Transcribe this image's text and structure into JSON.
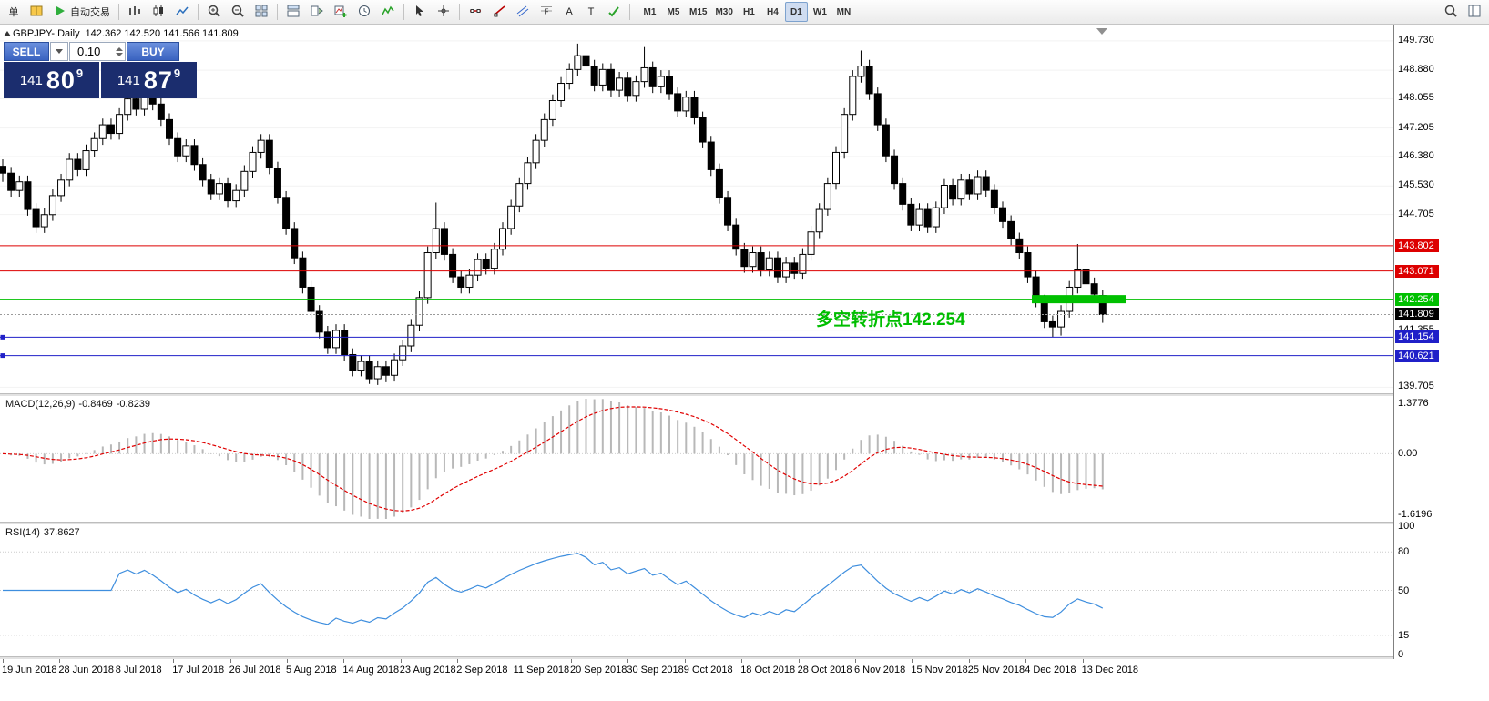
{
  "toolbar": {
    "groups": [
      {
        "items": [
          {
            "name": "new-order-button",
            "label": "单"
          },
          {
            "name": "charts-profile-button",
            "icon": "book"
          },
          {
            "name": "autotrading-button",
            "icon": "play",
            "label": "自动交易"
          }
        ]
      },
      {
        "sep": true
      },
      {
        "items": [
          {
            "name": "bar-chart-button",
            "icon": "bars"
          },
          {
            "name": "candlestick-chart-button",
            "icon": "candles"
          },
          {
            "name": "line-chart-button",
            "icon": "linechart"
          }
        ]
      },
      {
        "sep": true
      },
      {
        "items": [
          {
            "name": "zoom-in-button",
            "icon": "zoom-in"
          },
          {
            "name": "zoom-out-button",
            "icon": "zoom-out"
          },
          {
            "name": "tile-windows-button",
            "icon": "tile"
          }
        ]
      },
      {
        "sep": true
      },
      {
        "items": [
          {
            "name": "arrange-windows-button",
            "icon": "arrange"
          },
          {
            "name": "auto-scroll-button",
            "icon": "shift"
          },
          {
            "name": "new-chart-button",
            "icon": "new-chart"
          },
          {
            "name": "periods-button",
            "icon": "clock"
          },
          {
            "name": "indicators-button",
            "icon": "indicator"
          }
        ]
      },
      {
        "sep": true
      },
      {
        "items": [
          {
            "name": "cursor-button",
            "icon": "cursor"
          },
          {
            "name": "crosshair-button",
            "icon": "crosshair"
          }
        ]
      },
      {
        "sep": true
      },
      {
        "items": [
          {
            "name": "horizontal-line-button",
            "icon": "hline"
          },
          {
            "name": "trendline-button",
            "icon": "trendline"
          },
          {
            "name": "channel-button",
            "icon": "channel"
          },
          {
            "name": "fibonacci-button",
            "icon": "fibo"
          },
          {
            "name": "text-tool-button",
            "label": "A"
          },
          {
            "name": "label-tool-button",
            "label": "T"
          },
          {
            "name": "arrows-tool-button",
            "icon": "arrows"
          }
        ]
      },
      {
        "sep": true
      },
      {
        "timeframes": true
      }
    ],
    "timeframes": {
      "options": [
        "M1",
        "M5",
        "M15",
        "M30",
        "H1",
        "H4",
        "D1",
        "W1",
        "MN"
      ],
      "active": "D1"
    },
    "right_items": [
      {
        "name": "symbol-search-button",
        "icon": "search"
      },
      {
        "name": "panels-button",
        "icon": "panel"
      }
    ]
  },
  "chart_header": {
    "symbol_period": "GBPJPY-,Daily",
    "ohlc": "142.362 142.520 141.566 141.809"
  },
  "trade_panel": {
    "sell_label": "SELL",
    "buy_label": "BUY",
    "lot": "0.10",
    "bid": {
      "main": "141",
      "big": "80",
      "sup": "9"
    },
    "ask": {
      "main": "141",
      "big": "87",
      "sup": "9"
    }
  },
  "annotation": {
    "text": "多空转折点142.254",
    "color": "#00BE00"
  },
  "chart_data": {
    "type": "candlestick",
    "symbol": "GBPJPY-",
    "period": "Daily",
    "ylim": [
      139.53,
      150.2
    ],
    "price_axis_ticks": [
      "149.730",
      "148.880",
      "148.055",
      "147.205",
      "146.380",
      "145.530",
      "144.705",
      "141.355",
      "139.705"
    ],
    "levels": [
      {
        "price": 143.802,
        "label": "143.802",
        "color": "#DD0000"
      },
      {
        "price": 143.071,
        "label": "143.071",
        "color": "#DD0000"
      },
      {
        "price": 142.254,
        "label": "142.254",
        "color": "#00C000",
        "segment": [
          1133,
          1236
        ]
      },
      {
        "price": 141.809,
        "label": "141.809",
        "color": "#000000",
        "style": "current"
      },
      {
        "price": 141.154,
        "label": "141.154",
        "color": "#2020C8",
        "handles": true
      },
      {
        "price": 140.621,
        "label": "140.621",
        "color": "#2020C8",
        "handles": true
      }
    ],
    "candles": [
      [
        146.1,
        146.3,
        145.65,
        145.9
      ],
      [
        145.9,
        146.08,
        145.22,
        145.4
      ],
      [
        145.4,
        145.83,
        145.22,
        145.65
      ],
      [
        145.65,
        145.83,
        144.67,
        144.85
      ],
      [
        144.85,
        145.03,
        144.17,
        144.35
      ],
      [
        144.35,
        144.88,
        144.17,
        144.7
      ],
      [
        144.7,
        145.43,
        144.52,
        145.25
      ],
      [
        145.25,
        145.88,
        145.07,
        145.7
      ],
      [
        145.7,
        146.48,
        145.52,
        146.3
      ],
      [
        146.3,
        146.48,
        145.82,
        146.0
      ],
      [
        146.0,
        146.73,
        145.82,
        146.55
      ],
      [
        146.55,
        147.08,
        146.37,
        146.9
      ],
      [
        146.9,
        147.48,
        146.72,
        147.3
      ],
      [
        147.3,
        147.48,
        146.87,
        147.05
      ],
      [
        147.05,
        147.78,
        146.87,
        147.6
      ],
      [
        147.6,
        148.23,
        147.42,
        148.05
      ],
      [
        148.05,
        148.23,
        147.57,
        147.75
      ],
      [
        147.75,
        148.55,
        147.57,
        148.25
      ],
      [
        148.25,
        148.43,
        147.72,
        147.9
      ],
      [
        147.9,
        148.08,
        147.27,
        147.45
      ],
      [
        147.45,
        147.63,
        146.72,
        146.9
      ],
      [
        146.9,
        147.08,
        146.22,
        146.4
      ],
      [
        146.4,
        146.88,
        146.22,
        146.7
      ],
      [
        146.7,
        146.88,
        145.97,
        146.15
      ],
      [
        146.15,
        146.33,
        145.52,
        145.7
      ],
      [
        145.7,
        145.88,
        145.12,
        145.3
      ],
      [
        145.3,
        145.78,
        145.12,
        145.6
      ],
      [
        145.6,
        145.78,
        144.92,
        145.1
      ],
      [
        145.1,
        145.58,
        144.92,
        145.4
      ],
      [
        145.4,
        146.13,
        145.22,
        145.95
      ],
      [
        145.95,
        146.68,
        145.77,
        146.5
      ],
      [
        146.5,
        147.03,
        146.32,
        146.85
      ],
      [
        146.85,
        147.03,
        145.87,
        146.05
      ],
      [
        146.05,
        146.23,
        145.02,
        145.2
      ],
      [
        145.2,
        145.38,
        144.12,
        144.3
      ],
      [
        144.3,
        144.48,
        143.27,
        143.45
      ],
      [
        143.45,
        143.63,
        142.42,
        142.6
      ],
      [
        142.6,
        142.78,
        141.72,
        141.9
      ],
      [
        141.9,
        142.08,
        141.12,
        141.3
      ],
      [
        141.3,
        141.48,
        140.67,
        140.85
      ],
      [
        140.85,
        141.53,
        140.67,
        141.35
      ],
      [
        141.35,
        141.53,
        140.47,
        140.65
      ],
      [
        140.65,
        140.83,
        140.02,
        140.2
      ],
      [
        140.2,
        140.63,
        140.02,
        140.45
      ],
      [
        140.45,
        140.63,
        139.8,
        139.95
      ],
      [
        139.95,
        140.48,
        139.77,
        140.3
      ],
      [
        140.3,
        140.48,
        139.85,
        140.05
      ],
      [
        140.05,
        140.68,
        139.87,
        140.5
      ],
      [
        140.5,
        141.08,
        140.32,
        140.9
      ],
      [
        140.9,
        141.68,
        140.72,
        141.5
      ],
      [
        141.5,
        142.48,
        141.32,
        142.3
      ],
      [
        142.3,
        143.78,
        142.12,
        143.6
      ],
      [
        143.6,
        145.05,
        143.42,
        144.3
      ],
      [
        144.3,
        144.48,
        143.37,
        143.55
      ],
      [
        143.55,
        143.73,
        142.72,
        142.9
      ],
      [
        142.9,
        143.08,
        142.42,
        142.6
      ],
      [
        142.6,
        143.13,
        142.42,
        142.95
      ],
      [
        142.95,
        143.58,
        142.77,
        143.4
      ],
      [
        143.4,
        143.58,
        142.97,
        143.15
      ],
      [
        143.15,
        143.88,
        142.97,
        143.7
      ],
      [
        143.7,
        144.48,
        143.52,
        144.3
      ],
      [
        144.3,
        145.13,
        144.12,
        144.95
      ],
      [
        144.95,
        145.78,
        144.77,
        145.6
      ],
      [
        145.6,
        146.38,
        145.42,
        146.2
      ],
      [
        146.2,
        147.03,
        146.02,
        146.85
      ],
      [
        146.85,
        147.63,
        146.67,
        147.45
      ],
      [
        147.45,
        148.18,
        147.27,
        148.0
      ],
      [
        148.0,
        148.68,
        147.82,
        148.5
      ],
      [
        148.5,
        149.08,
        148.32,
        148.9
      ],
      [
        148.9,
        149.65,
        148.72,
        149.3
      ],
      [
        149.3,
        149.48,
        148.82,
        149.0
      ],
      [
        149.0,
        149.18,
        148.27,
        148.45
      ],
      [
        148.45,
        149.08,
        148.27,
        148.9
      ],
      [
        148.9,
        149.08,
        148.12,
        148.3
      ],
      [
        148.3,
        148.83,
        148.12,
        148.65
      ],
      [
        148.65,
        148.83,
        147.97,
        148.15
      ],
      [
        148.15,
        148.73,
        147.97,
        148.55
      ],
      [
        148.55,
        149.55,
        148.37,
        148.95
      ],
      [
        148.95,
        149.13,
        148.22,
        148.4
      ],
      [
        148.4,
        148.88,
        148.22,
        148.7
      ],
      [
        148.7,
        148.88,
        148.02,
        148.2
      ],
      [
        148.2,
        148.38,
        147.52,
        147.7
      ],
      [
        147.7,
        148.28,
        147.52,
        148.1
      ],
      [
        148.1,
        148.28,
        147.32,
        147.5
      ],
      [
        147.5,
        147.68,
        146.62,
        146.8
      ],
      [
        146.8,
        146.98,
        145.82,
        146.0
      ],
      [
        146.0,
        146.18,
        145.02,
        145.2
      ],
      [
        145.2,
        145.38,
        144.22,
        144.4
      ],
      [
        144.4,
        144.58,
        143.52,
        143.7
      ],
      [
        143.7,
        143.88,
        143.02,
        143.2
      ],
      [
        143.2,
        143.78,
        143.02,
        143.6
      ],
      [
        143.6,
        143.78,
        142.92,
        143.1
      ],
      [
        143.1,
        143.63,
        142.92,
        143.45
      ],
      [
        143.45,
        143.63,
        142.72,
        142.9
      ],
      [
        142.9,
        143.48,
        142.72,
        143.3
      ],
      [
        143.3,
        143.48,
        142.82,
        143.0
      ],
      [
        143.0,
        143.73,
        142.82,
        143.55
      ],
      [
        143.55,
        144.38,
        143.37,
        144.2
      ],
      [
        144.2,
        145.03,
        144.02,
        144.85
      ],
      [
        144.85,
        145.78,
        144.67,
        145.6
      ],
      [
        145.6,
        146.68,
        145.42,
        146.5
      ],
      [
        146.5,
        147.78,
        146.32,
        147.6
      ],
      [
        147.6,
        148.88,
        147.42,
        148.7
      ],
      [
        148.7,
        149.45,
        148.52,
        149.0
      ],
      [
        149.0,
        149.18,
        148.02,
        148.2
      ],
      [
        148.2,
        148.38,
        147.12,
        147.3
      ],
      [
        147.3,
        147.48,
        146.22,
        146.4
      ],
      [
        146.4,
        146.58,
        145.42,
        145.6
      ],
      [
        145.6,
        145.78,
        144.82,
        145.0
      ],
      [
        145.0,
        145.18,
        144.22,
        144.4
      ],
      [
        144.4,
        145.03,
        144.22,
        144.85
      ],
      [
        144.85,
        145.03,
        144.17,
        144.35
      ],
      [
        144.35,
        145.08,
        144.17,
        144.9
      ],
      [
        144.9,
        145.73,
        144.72,
        145.55
      ],
      [
        145.55,
        145.73,
        144.97,
        145.15
      ],
      [
        145.15,
        145.88,
        144.97,
        145.7
      ],
      [
        145.7,
        145.88,
        145.12,
        145.3
      ],
      [
        145.3,
        145.98,
        145.12,
        145.8
      ],
      [
        145.8,
        145.98,
        145.22,
        145.4
      ],
      [
        145.4,
        145.58,
        144.72,
        144.9
      ],
      [
        144.9,
        145.08,
        144.32,
        144.5
      ],
      [
        144.5,
        144.68,
        143.82,
        144.0
      ],
      [
        144.0,
        144.18,
        143.42,
        143.6
      ],
      [
        143.6,
        143.78,
        142.72,
        142.9
      ],
      [
        142.9,
        143.08,
        142.02,
        142.2
      ],
      [
        142.2,
        142.38,
        141.42,
        141.6
      ],
      [
        141.6,
        141.78,
        141.15,
        141.45
      ],
      [
        141.45,
        142.08,
        141.2,
        141.9
      ],
      [
        141.9,
        142.78,
        141.72,
        142.6
      ],
      [
        142.6,
        143.85,
        142.42,
        143.1
      ],
      [
        143.1,
        143.28,
        142.52,
        142.7
      ],
      [
        142.7,
        142.88,
        142.22,
        142.4
      ],
      [
        142.36,
        142.52,
        141.57,
        141.81
      ]
    ],
    "time_labels": [
      "19 Jun 2018",
      "28 Jun 2018",
      "8 Jul 2018",
      "17 Jul 2018",
      "26 Jul 2018",
      "5 Aug 2018",
      "14 Aug 2018",
      "23 Aug 2018",
      "2 Sep 2018",
      "11 Sep 2018",
      "20 Sep 2018",
      "30 Sep 2018",
      "9 Oct 2018",
      "18 Oct 2018",
      "28 Oct 2018",
      "6 Nov 2018",
      "15 Nov 2018",
      "25 Nov 2018",
      "4 Dec 2018",
      "13 Dec 2018"
    ],
    "macd": {
      "label": "MACD(12,26,9)",
      "value1": "-0.8469",
      "value2": "-0.8239",
      "params": [
        12,
        26,
        9
      ],
      "ylim": [
        -1.6196,
        1.3776
      ],
      "axis_labels": [
        "1.3776",
        "0.00",
        "-1.6196"
      ]
    },
    "rsi": {
      "label": "RSI(14)",
      "value": "37.8627",
      "period": 14,
      "range": [
        0,
        100
      ],
      "axis_labels": [
        "100",
        "80",
        "50",
        "15",
        "0"
      ],
      "level_lines": [
        80,
        50,
        15
      ]
    },
    "colors": {
      "candle_up": "#FFFFFF",
      "candle_down": "#000000",
      "grid": "#F2F2F2",
      "macd_hist": "#B8B8B8",
      "macd_signal": "#E00000",
      "rsi_line": "#3E8EDE",
      "current_price_line": "#9A9A9A"
    }
  }
}
